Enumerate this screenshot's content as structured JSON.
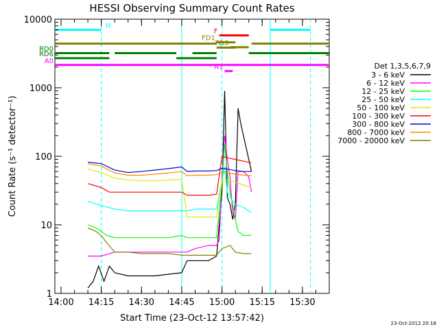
{
  "footer": {
    "stamp": "23-Oct-2012 20:18"
  },
  "chart_data": {
    "type": "line",
    "title": "HESSI Observing Summary Count Rates",
    "xlabel": "Start Time (23-Oct-12 13:57:42)",
    "ylabel": "Count Rate (s⁻¹ detector⁻¹)",
    "yscale": "log",
    "ylim": [
      1,
      10000
    ],
    "xlim": [
      "13:57:42",
      "15:40:00"
    ],
    "xticks": [
      "14:00",
      "14:15",
      "14:30",
      "14:45",
      "15:00",
      "15:15",
      "15:30"
    ],
    "yticks": [
      "1",
      "10",
      "100",
      "1000",
      "10000"
    ],
    "legend": {
      "placement": "right",
      "title": "Det 1,3,5,6,7,9",
      "entries": [
        {
          "label": "3 - 6 keV",
          "color": "#000000"
        },
        {
          "label": "6 - 12 keV",
          "color": "#ff00ff"
        },
        {
          "label": "12 - 25 keV",
          "color": "#00ff00"
        },
        {
          "label": "25 - 50 keV",
          "color": "#00ffff"
        },
        {
          "label": "50 - 100 keV",
          "color": "#e6e600"
        },
        {
          "label": "100 - 300 keV",
          "color": "#ff0000"
        },
        {
          "label": "300 - 800 keV",
          "color": "#0000cc"
        },
        {
          "label": "800 - 7000 keV",
          "color": "#ff8800"
        },
        {
          "label": "7000 - 20000 keV",
          "color": "#808000"
        }
      ]
    },
    "series": [
      {
        "name": "3 - 6 keV",
        "color": "#000000",
        "x": [
          "14:10",
          "14:12",
          "14:14",
          "14:16",
          "14:18",
          "14:20",
          "14:25",
          "14:30",
          "14:35",
          "14:40",
          "14:45",
          "14:47",
          "14:50",
          "14:55",
          "14:58",
          "15:00",
          "15:01",
          "15:02",
          "15:03",
          "15:04",
          "15:05",
          "15:06",
          "15:07",
          "15:08",
          "15:10",
          "15:11"
        ],
        "y": [
          1.2,
          1.5,
          2.5,
          1.5,
          2.5,
          2.0,
          1.8,
          1.8,
          1.8,
          1.9,
          2.0,
          3.0,
          3.0,
          3.0,
          3.5,
          30,
          900,
          25,
          20,
          12,
          20,
          500,
          300,
          200,
          90,
          60
        ]
      },
      {
        "name": "6 - 12 keV",
        "color": "#ff00ff",
        "x": [
          "14:10",
          "14:15",
          "14:20",
          "14:25",
          "14:30",
          "14:35",
          "14:40",
          "14:45",
          "14:47",
          "14:50",
          "14:55",
          "14:58",
          "14:59",
          "15:00",
          "15:01",
          "15:02",
          "15:03",
          "15:04",
          "15:05",
          "15:06",
          "15:08",
          "15:10",
          "15:11"
        ],
        "y": [
          3.5,
          3.5,
          4.0,
          4.0,
          4.0,
          4.0,
          4.0,
          4.0,
          4.0,
          4.5,
          5.0,
          5.0,
          6.0,
          50,
          200,
          90,
          50,
          15,
          12,
          60,
          60,
          50,
          30
        ]
      },
      {
        "name": "12 - 25 keV",
        "color": "#00ff00",
        "x": [
          "14:10",
          "14:13",
          "14:15",
          "14:17",
          "14:20",
          "14:22",
          "14:25",
          "14:30",
          "14:35",
          "14:40",
          "14:45",
          "14:47",
          "14:50",
          "14:55",
          "14:58",
          "15:00",
          "15:01",
          "15:02",
          "15:03",
          "15:04",
          "15:05",
          "15:06",
          "15:08",
          "15:10",
          "15:11"
        ],
        "y": [
          10,
          9,
          8,
          7,
          6.5,
          6.5,
          6.5,
          6.5,
          6.5,
          6.5,
          7.0,
          6.5,
          6.5,
          6.5,
          6.5,
          40,
          150,
          60,
          30,
          20,
          12,
          8,
          7,
          7,
          7
        ]
      },
      {
        "name": "25 - 50 keV",
        "color": "#00ffff",
        "x": [
          "14:10",
          "14:15",
          "14:20",
          "14:25",
          "14:30",
          "14:35",
          "14:40",
          "14:45",
          "14:47",
          "14:50",
          "14:55",
          "14:58",
          "15:00",
          "15:01",
          "15:02",
          "15:03",
          "15:05",
          "15:08",
          "15:11"
        ],
        "y": [
          22,
          19,
          17,
          16,
          16,
          16,
          16,
          16,
          16,
          17,
          17,
          17,
          45,
          70,
          30,
          25,
          20,
          18,
          15
        ]
      },
      {
        "name": "50 - 100 keV",
        "color": "#e6e600",
        "x": [
          "14:10",
          "14:15",
          "14:20",
          "14:25",
          "14:30",
          "14:35",
          "14:40",
          "14:45",
          "14:47",
          "14:50",
          "14:55",
          "14:58",
          "15:00",
          "15:02",
          "15:05",
          "15:08",
          "15:11"
        ],
        "y": [
          65,
          58,
          48,
          45,
          44,
          44,
          45,
          46,
          13,
          13,
          13,
          13,
          45,
          45,
          42,
          38,
          35
        ]
      },
      {
        "name": "100 - 300 keV",
        "color": "#ff0000",
        "x": [
          "14:10",
          "14:12",
          "14:15",
          "14:18",
          "14:20",
          "14:25",
          "14:30",
          "14:35",
          "14:40",
          "14:45",
          "14:47",
          "14:50",
          "14:55",
          "14:58",
          "15:00",
          "15:02",
          "15:05",
          "15:08",
          "15:11"
        ],
        "y": [
          40,
          38,
          35,
          30,
          30,
          30,
          30,
          30,
          30,
          30,
          27,
          27,
          27,
          28,
          100,
          95,
          90,
          85,
          80
        ]
      },
      {
        "name": "300 - 800 keV",
        "color": "#0000cc",
        "x": [
          "14:10",
          "14:15",
          "14:20",
          "14:25",
          "14:30",
          "14:35",
          "14:40",
          "14:45",
          "14:47",
          "14:50",
          "14:55",
          "14:58",
          "15:00",
          "15:02",
          "15:05",
          "15:08",
          "15:11"
        ],
        "y": [
          82,
          78,
          63,
          58,
          60,
          63,
          66,
          70,
          60,
          61,
          61,
          62,
          67,
          65,
          62,
          60,
          60
        ]
      },
      {
        "name": "800 - 7000 keV",
        "color": "#ff8800",
        "x": [
          "14:10",
          "14:15",
          "14:20",
          "14:25",
          "14:30",
          "14:35",
          "14:40",
          "14:45",
          "14:47",
          "14:50",
          "14:55",
          "14:58",
          "15:00",
          "15:02",
          "15:05",
          "15:08",
          "15:11"
        ],
        "y": [
          78,
          72,
          57,
          53,
          53,
          55,
          57,
          60,
          52,
          53,
          53,
          54,
          58,
          57,
          55,
          53,
          52
        ]
      },
      {
        "name": "7000 - 20000 keV",
        "color": "#808000",
        "x": [
          "14:10",
          "14:13",
          "14:15",
          "14:17",
          "14:20",
          "14:25",
          "14:30",
          "14:35",
          "14:40",
          "14:45",
          "14:47",
          "14:50",
          "14:55",
          "14:58",
          "15:00",
          "15:03",
          "15:05",
          "15:08",
          "15:11"
        ],
        "y": [
          9,
          8,
          7,
          5.5,
          4.0,
          4.0,
          3.8,
          3.8,
          3.8,
          3.6,
          3.6,
          3.6,
          3.6,
          3.6,
          4.5,
          5.0,
          4.0,
          3.8,
          3.8
        ]
      }
    ],
    "vlines": [
      {
        "x": "14:15",
        "color": "#00ffff",
        "style": "dashed"
      },
      {
        "x": "15:18",
        "color": "#00ffff",
        "style": "solid"
      },
      {
        "x": "15:33",
        "color": "#00ffff",
        "style": "dashed"
      },
      {
        "x": "14:45",
        "color": "#00ffff",
        "style": "solid"
      },
      {
        "x": "15:00",
        "color": "#00ffff",
        "style": "dashed"
      }
    ],
    "flag_bars": [
      {
        "label": "N",
        "color": "#00ffff",
        "y": 7000,
        "segments": [
          [
            "13:57:42",
            "14:15"
          ],
          [
            "15:18",
            "15:33"
          ]
        ]
      },
      {
        "label": "F",
        "color": "#ff0000",
        "y": 5800,
        "segments": [
          [
            "14:59",
            "15:10"
          ]
        ]
      },
      {
        "label": "FD1",
        "color": "#808000",
        "y": 4600,
        "segments": [
          [
            "14:58",
            "15:05"
          ]
        ]
      },
      {
        "label": "FD3",
        "color": "#808000",
        "y": 3900,
        "segments": [
          [
            "15:03",
            "15:10"
          ]
        ]
      },
      {
        "label": "",
        "color": "#808000",
        "y": 4400,
        "segments": [
          [
            "13:57:42",
            "14:58"
          ],
          [
            "15:11",
            "15:40"
          ]
        ]
      },
      {
        "label": "",
        "color": "#808000",
        "y": 3850,
        "segments": [
          [
            "14:58",
            "15:05"
          ]
        ]
      },
      {
        "label": "RD0",
        "color": "#008000",
        "y": 3200,
        "segments": [
          [
            "13:57:42",
            "14:18"
          ],
          [
            "14:20",
            "14:43"
          ],
          [
            "14:49",
            "14:58"
          ],
          [
            "15:10",
            "15:40"
          ]
        ]
      },
      {
        "label": "RD6",
        "color": "#008000",
        "y": 2700,
        "segments": [
          [
            "13:57:42",
            "14:18"
          ],
          [
            "14:43",
            "14:58"
          ]
        ]
      },
      {
        "label": "A0",
        "color": "#ff00ff",
        "y": 2150,
        "segments": [
          [
            "13:57:42",
            "15:40"
          ]
        ]
      },
      {
        "label": "A1",
        "color": "#ff00ff",
        "y": 1750,
        "segments": [
          [
            "15:01",
            "15:04"
          ]
        ]
      }
    ]
  }
}
